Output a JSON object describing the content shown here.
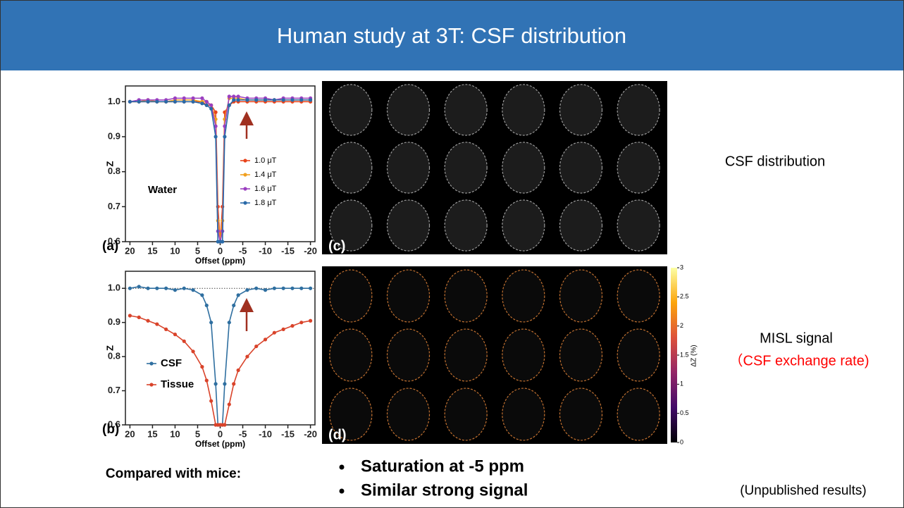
{
  "header": {
    "title": "Human study at 3T: CSF distribution"
  },
  "chart_data": [
    {
      "type": "line",
      "panel_label": "(a)",
      "annotation": "Water",
      "xlabel": "Offset (ppm)",
      "ylabel": "Z",
      "x": [
        20,
        18,
        16,
        14,
        12,
        10,
        8,
        6,
        4,
        3,
        2,
        1,
        0.5,
        0,
        -0.5,
        -1,
        -2,
        -3,
        -4,
        -6,
        -8,
        -10,
        -12,
        -14,
        -16,
        -18,
        -20
      ],
      "xlim": [
        21,
        -21
      ],
      "xticks": [
        20,
        15,
        10,
        5,
        0,
        -5,
        -10,
        -15,
        -20
      ],
      "ylim": [
        0.6,
        1.045
      ],
      "yticks": [
        {
          "value": 1,
          "label": "1.0"
        },
        0.9,
        0.8,
        0.7,
        0.6
      ],
      "legend": "right",
      "series": [
        {
          "name": "1.0 μT",
          "color": "#e8441c",
          "values": [
            1,
            1,
            1,
            1,
            1,
            1,
            1,
            1,
            1,
            0.99,
            0.99,
            0.97,
            0.7,
            0.6,
            0.7,
            0.97,
            0.99,
            1,
            1,
            1,
            1,
            1,
            1,
            1,
            1,
            1,
            1
          ]
        },
        {
          "name": "1.4 μT",
          "color": "#f0a020",
          "values": [
            1,
            1,
            1.005,
            1,
            1,
            1.005,
            1.005,
            1.005,
            1,
            1,
            0.99,
            0.95,
            0.66,
            0.6,
            0.66,
            0.95,
            1.01,
            1.01,
            1.01,
            1.005,
            1.005,
            1.005,
            1.005,
            1.005,
            1.005,
            1.005,
            1.005
          ]
        },
        {
          "name": "1.6 μT",
          "color": "#9b3fc0",
          "values": [
            1,
            1.005,
            1.005,
            1.005,
            1.005,
            1.01,
            1.01,
            1.01,
            1.01,
            1,
            0.99,
            0.93,
            0.63,
            0.6,
            0.63,
            0.93,
            1.015,
            1.015,
            1.015,
            1.01,
            1.01,
            1.01,
            1.005,
            1.01,
            1.01,
            1.01,
            1.01
          ]
        },
        {
          "name": "1.8 μT",
          "color": "#2a6aa8",
          "values": [
            1,
            1,
            1,
            1,
            1,
            1,
            1,
            1,
            0.995,
            0.99,
            0.98,
            0.9,
            0.6,
            0.6,
            0.6,
            0.9,
            0.99,
            1.005,
            1.005,
            1.005,
            1.005,
            1.005,
            1.005,
            1.005,
            1.005,
            1.005,
            1.005
          ]
        }
      ]
    },
    {
      "type": "line",
      "panel_label": "(b)",
      "xlabel": "Offset (ppm)",
      "ylabel": "Z",
      "x": [
        20,
        18,
        16,
        14,
        12,
        10,
        8,
        6,
        4,
        3,
        2,
        1,
        0.5,
        0,
        -0.5,
        -1,
        -2,
        -3,
        -4,
        -6,
        -8,
        -10,
        -12,
        -14,
        -16,
        -18,
        -20
      ],
      "xlim": [
        21,
        -21
      ],
      "xticks": [
        20,
        15,
        10,
        5,
        0,
        -5,
        -10,
        -15,
        -20
      ],
      "ylim": [
        0.6,
        1.05
      ],
      "yticks": [
        {
          "value": 1,
          "label": "1.0"
        },
        0.9,
        0.8,
        0.7,
        0.6
      ],
      "reference_line": 1,
      "legend": "lower-left",
      "series": [
        {
          "name": "CSF",
          "color": "#2f6fa0",
          "values": [
            1,
            1.005,
            1,
            1,
            1,
            0.995,
            1,
            0.995,
            0.98,
            0.95,
            0.9,
            0.72,
            0.6,
            0.6,
            0.6,
            0.72,
            0.9,
            0.95,
            0.98,
            0.995,
            1,
            0.995,
            1,
            1,
            1,
            1,
            1
          ]
        },
        {
          "name": "Tissue",
          "color": "#d9432a",
          "values": [
            0.92,
            0.915,
            0.905,
            0.895,
            0.88,
            0.865,
            0.845,
            0.815,
            0.77,
            0.73,
            0.67,
            0.6,
            0.6,
            0.6,
            0.6,
            0.6,
            0.66,
            0.72,
            0.76,
            0.8,
            0.83,
            0.85,
            0.87,
            0.88,
            0.89,
            0.9,
            0.905
          ]
        }
      ]
    }
  ],
  "images": {
    "panel_c_label": "(c)",
    "panel_d_label": "(d)"
  },
  "colorbar": {
    "label": "ΔZ (%)",
    "lim": [
      0,
      3
    ],
    "ticks": [
      0,
      0.5,
      1,
      1.5,
      2,
      2.5,
      3
    ]
  },
  "side_notes": {
    "csf": "CSF distribution",
    "misl": "MISL signal",
    "exchange": "（CSF exchange rate)"
  },
  "footer": {
    "compared": "Compared with mice:",
    "bullets": [
      "Saturation at -5 ppm",
      "Similar strong signal"
    ],
    "note": "(Unpublished results)"
  }
}
